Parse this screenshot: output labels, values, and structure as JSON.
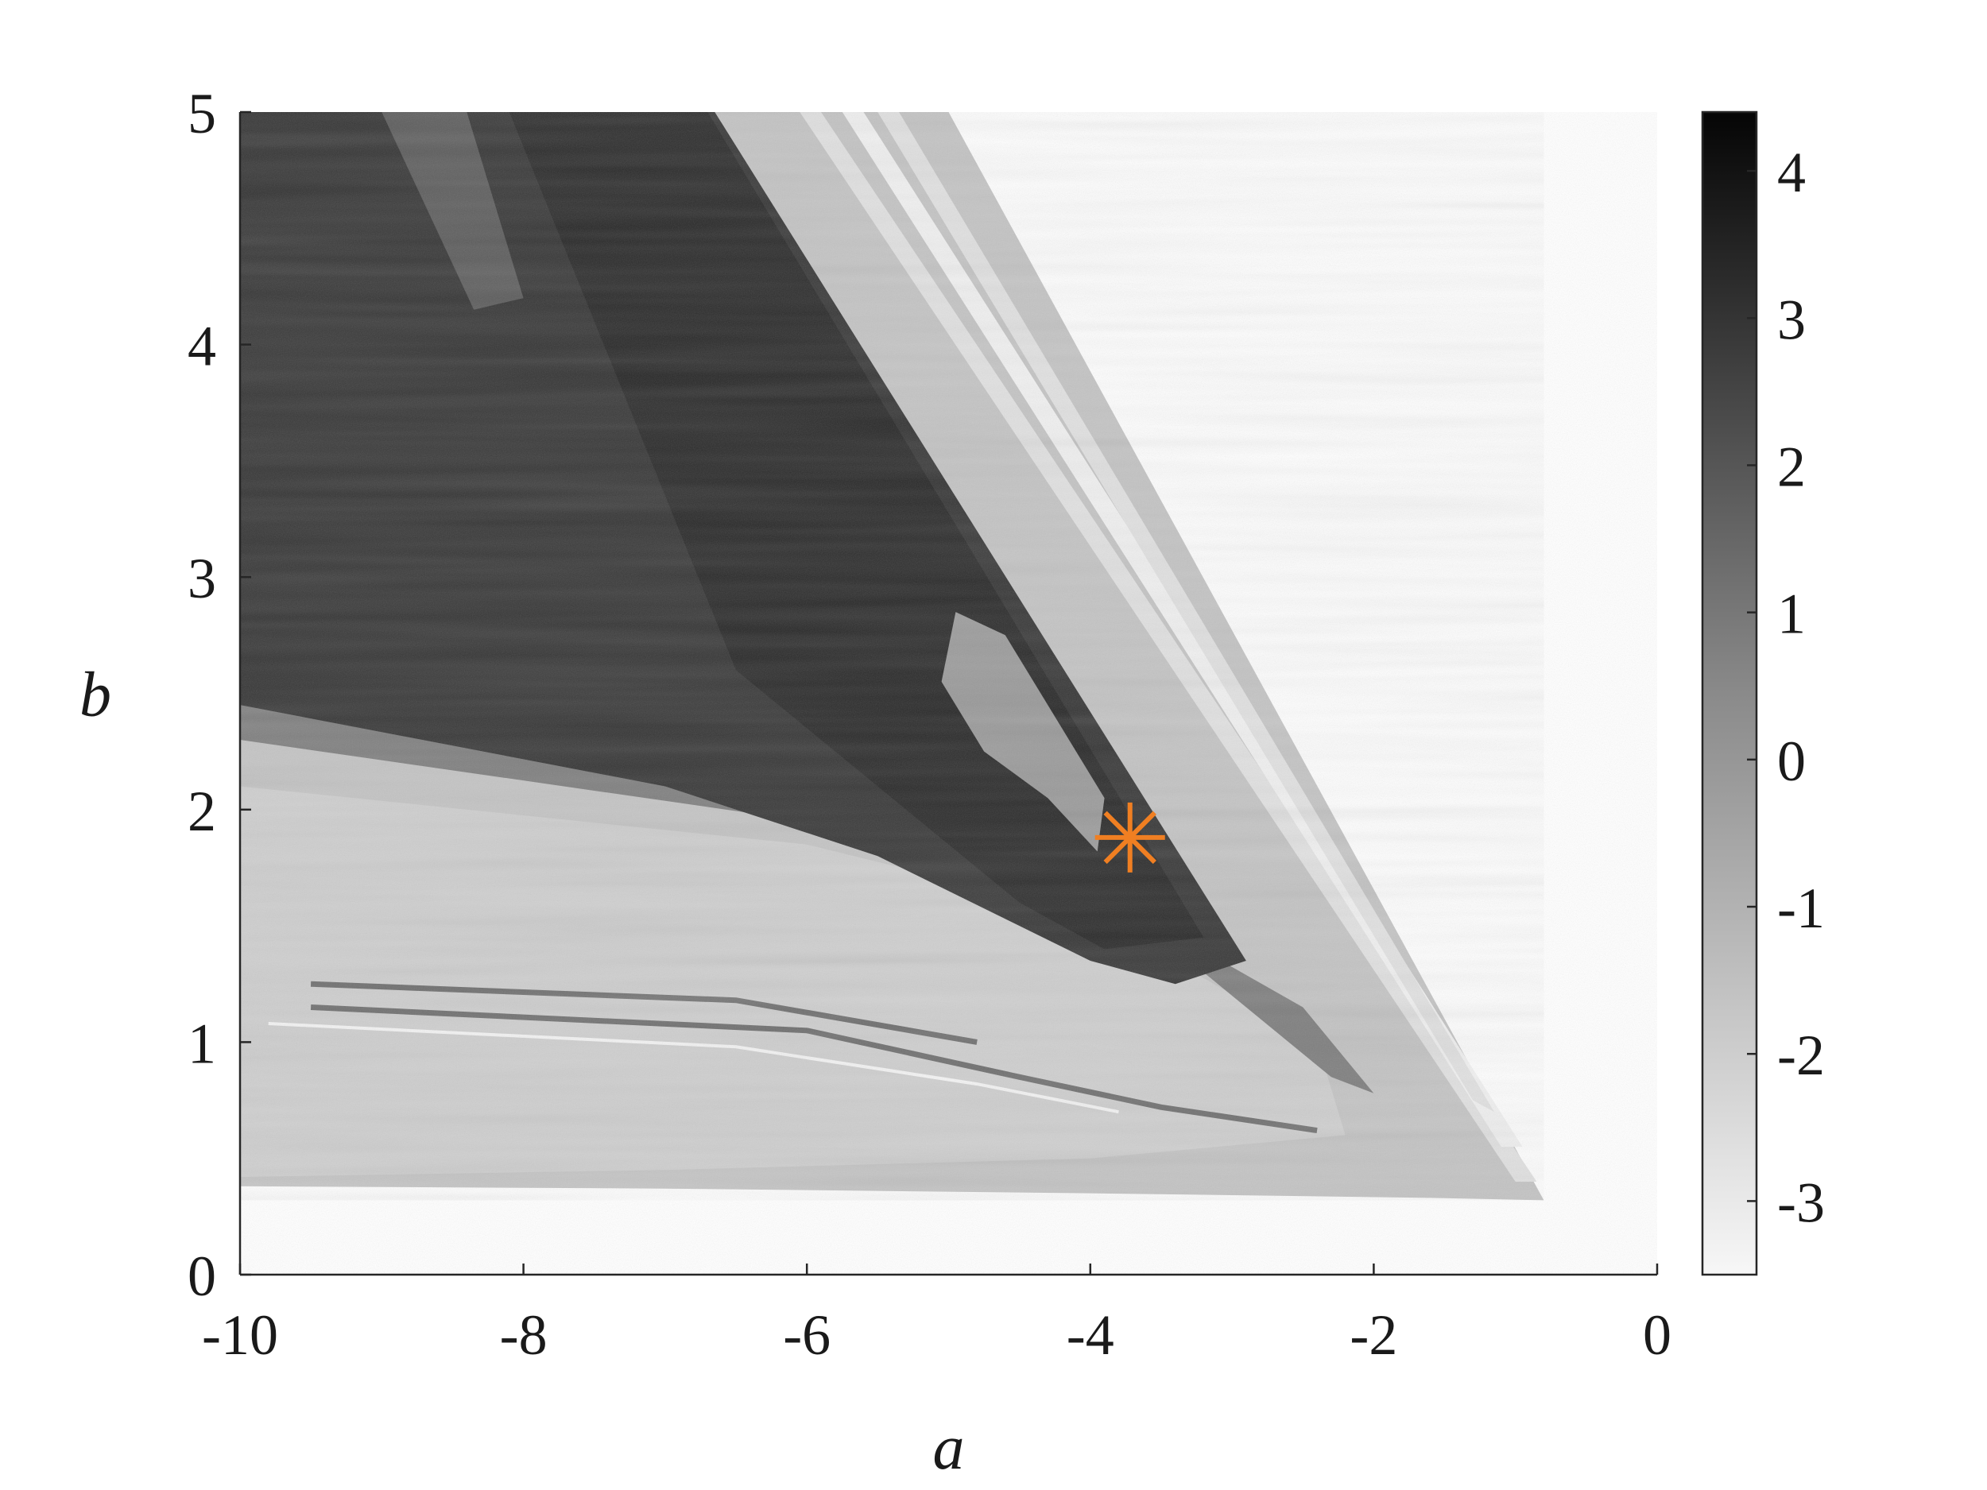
{
  "chart_data": {
    "type": "heatmap",
    "title": "",
    "xlabel": "a",
    "ylabel": "b",
    "xlim": [
      -10,
      0
    ],
    "ylim": [
      0,
      5
    ],
    "x_ticks": [
      -10,
      -8,
      -6,
      -4,
      -2,
      0
    ],
    "x_tick_labels": [
      "-10",
      "-8",
      "-6",
      "-4",
      "-2",
      "0"
    ],
    "y_ticks": [
      0,
      1,
      2,
      3,
      4,
      5
    ],
    "y_tick_labels": [
      "0",
      "1",
      "2",
      "3",
      "4",
      "5"
    ],
    "colorbar": {
      "range": [
        -3.5,
        4.4
      ],
      "ticks": [
        -3,
        -2,
        -1,
        0,
        1,
        2,
        3,
        4
      ],
      "tick_labels": [
        "-3",
        "-2",
        "-1",
        "0",
        "1",
        "2",
        "3",
        "4"
      ],
      "colormap": "grayscale (light = low, dark = high)"
    },
    "region_boundaries": {
      "left_top_a": -10,
      "top_right_edge_a_at_b5": -5.0,
      "right_tip_a": -0.8,
      "right_tip_b": 0.32,
      "lower_boundary_b_at_a_minus10": 0.38
    },
    "markers": [
      {
        "symbol": "asterisk",
        "a": -3.72,
        "b": 1.88,
        "color": "#f07f22"
      }
    ],
    "grid": false
  }
}
